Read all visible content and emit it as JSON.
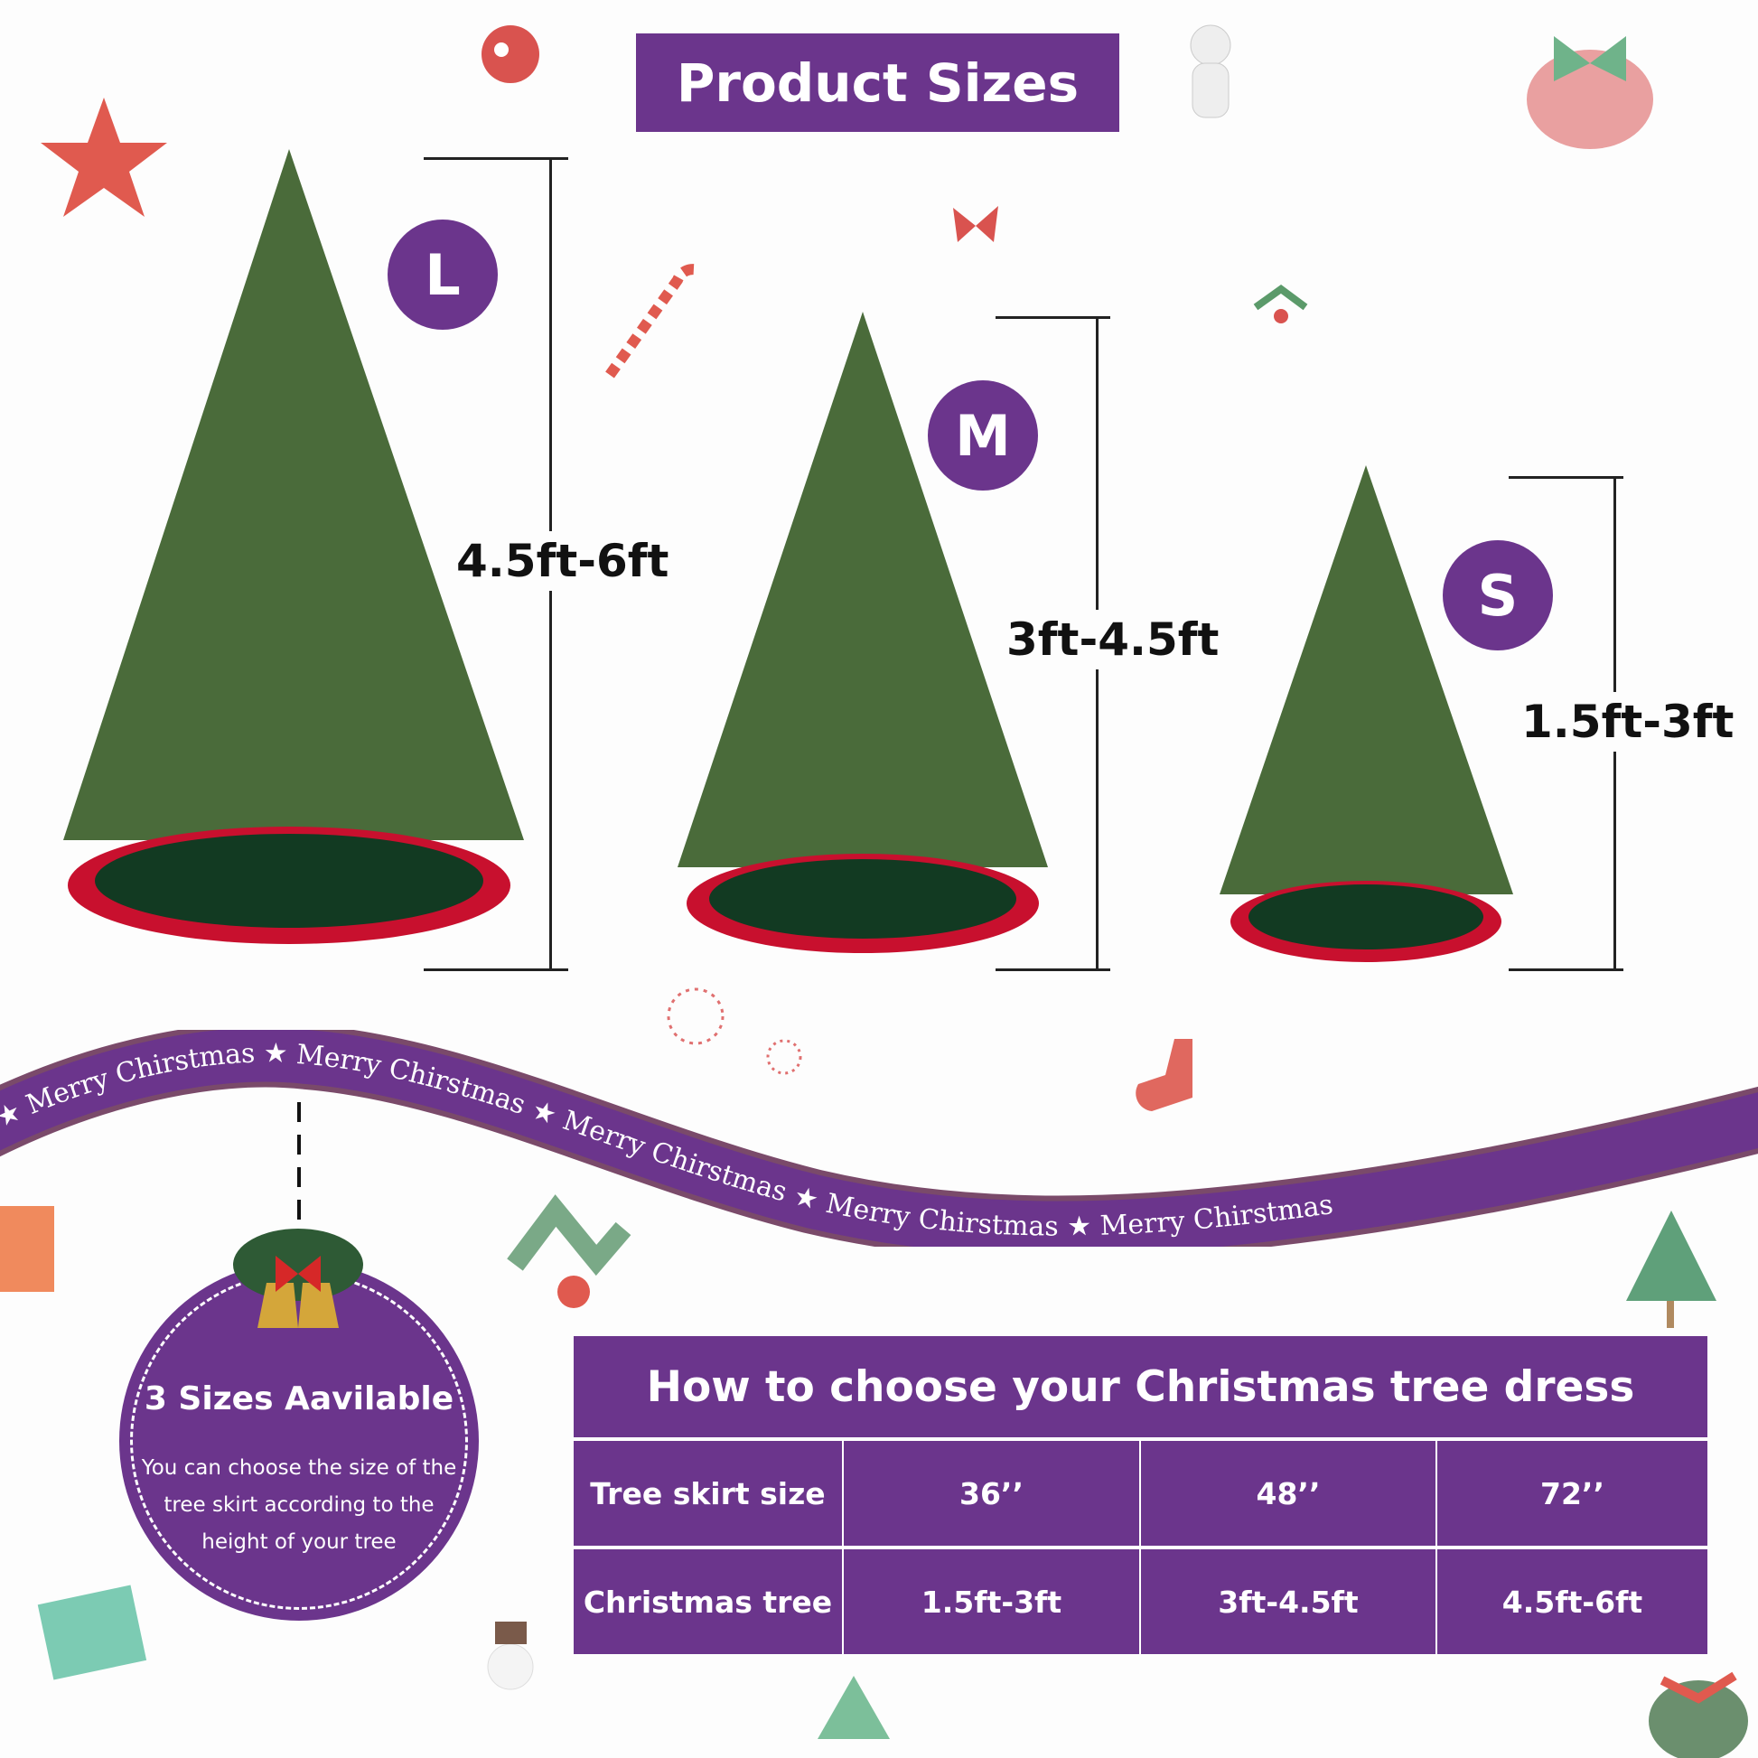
{
  "title": "Product Sizes",
  "sizes": [
    {
      "badge": "L",
      "height": "4.5ft-6ft"
    },
    {
      "badge": "M",
      "height": "3ft-4.5ft"
    },
    {
      "badge": "S",
      "height": "1.5ft-3ft"
    }
  ],
  "banner": {
    "text": "Merry Chirstmas",
    "star": "★"
  },
  "info": {
    "title": "3 Sizes Aavilable",
    "text": "You can choose the size of the tree skirt according to the height of your tree"
  },
  "table": {
    "title": "How to choose your Christmas tree dress",
    "rows": [
      {
        "label": "Tree skirt size",
        "values": [
          "36’’",
          "48’’",
          "72’’"
        ]
      },
      {
        "label": "Christmas tree",
        "values": [
          "1.5ft-3ft",
          "3ft-4.5ft",
          "4.5ft-6ft"
        ]
      }
    ]
  },
  "colors": {
    "brand": "#6b358c",
    "tree": "#4a6b3a",
    "skirt": "#c8102e",
    "skirt_inner": "#123a22"
  }
}
